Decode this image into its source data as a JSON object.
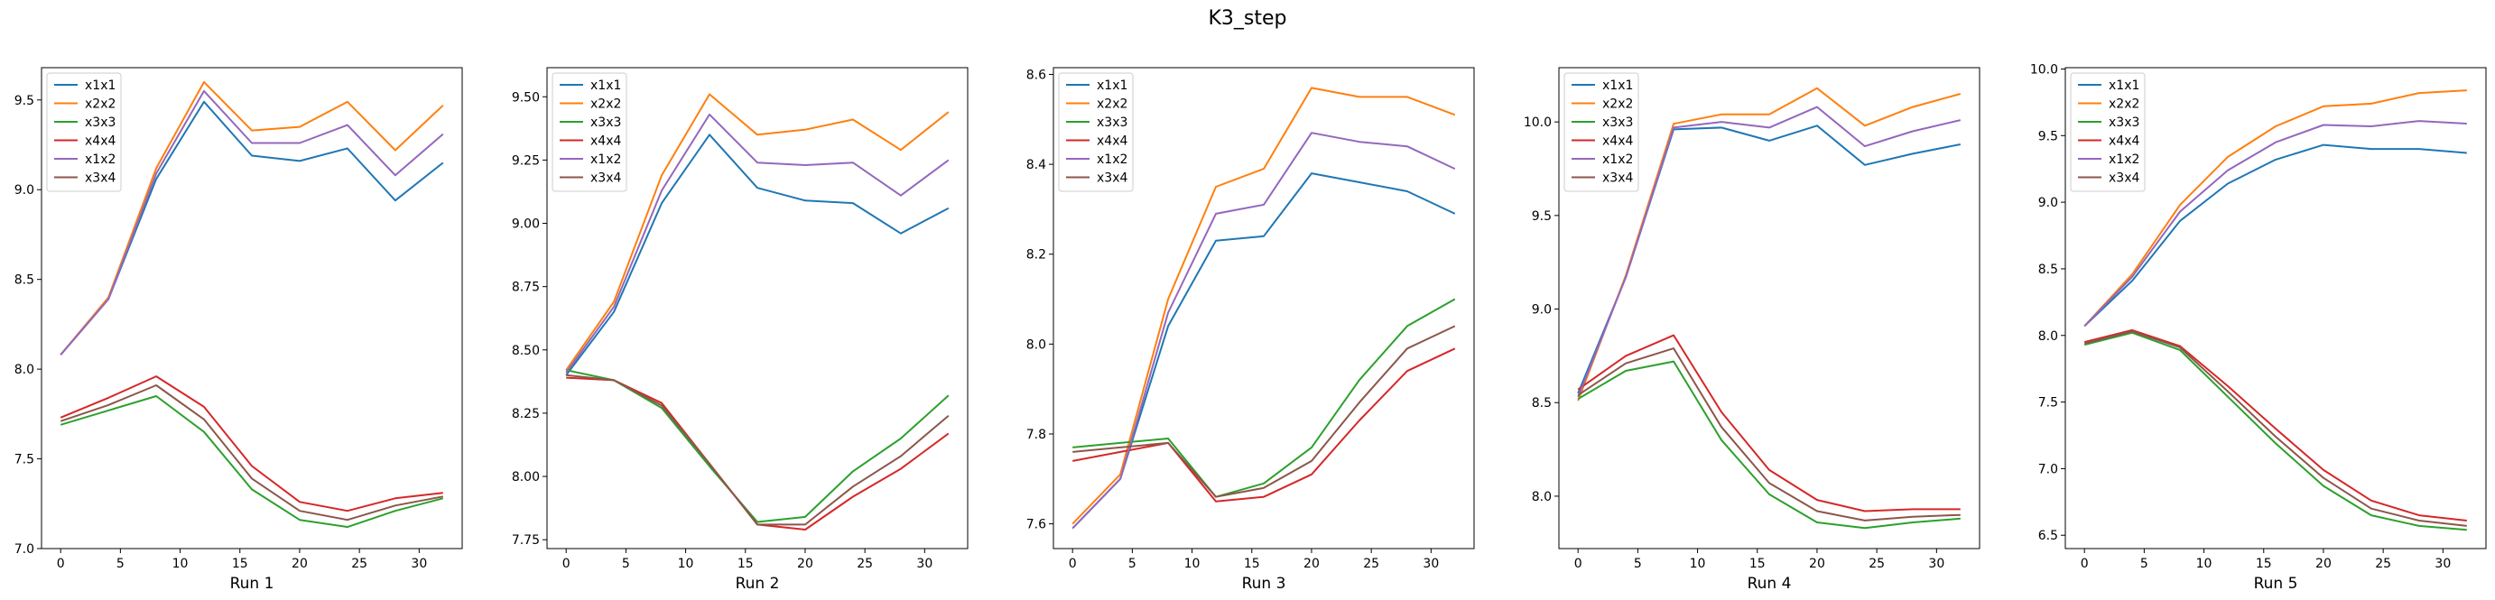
{
  "title": "K3_step",
  "colors": {
    "x1x1": "#1f77b4",
    "x2x2": "#ff7f0e",
    "x3x3": "#2ca02c",
    "x4x4": "#d62728",
    "x1x2": "#9467bd",
    "x3x4": "#8c564b"
  },
  "chart_data": [
    {
      "type": "line",
      "xlabel": "Run 1",
      "ylabel": "",
      "legend": "top-left",
      "grid": false,
      "x": [
        0,
        4,
        8,
        12,
        16,
        20,
        24,
        28,
        32
      ],
      "xlim": [
        -1.6,
        33.6
      ],
      "xticks": [
        0,
        5,
        10,
        15,
        20,
        25,
        30
      ],
      "ylim": [
        7.0,
        9.68
      ],
      "yticks": [
        7.0,
        7.5,
        8.0,
        8.5,
        9.0,
        9.5
      ],
      "ytick_labels": [
        "7.0",
        "7.5",
        "8.0",
        "8.5",
        "9.0",
        "9.5"
      ],
      "series": [
        {
          "name": "x1x1",
          "values": [
            8.08,
            8.39,
            9.06,
            9.49,
            9.19,
            9.16,
            9.23,
            8.94,
            9.15
          ]
        },
        {
          "name": "x2x2",
          "values": [
            8.08,
            8.4,
            9.12,
            9.6,
            9.33,
            9.35,
            9.49,
            9.22,
            9.47
          ]
        },
        {
          "name": "x3x3",
          "values": [
            7.69,
            7.77,
            7.85,
            7.65,
            7.33,
            7.16,
            7.12,
            7.21,
            7.28
          ]
        },
        {
          "name": "x4x4",
          "values": [
            7.73,
            7.84,
            7.96,
            7.79,
            7.46,
            7.26,
            7.21,
            7.28,
            7.31
          ]
        },
        {
          "name": "x1x2",
          "values": [
            8.08,
            8.39,
            9.09,
            9.55,
            9.26,
            9.26,
            9.36,
            9.08,
            9.31
          ]
        },
        {
          "name": "x3x4",
          "values": [
            7.71,
            7.8,
            7.91,
            7.72,
            7.39,
            7.21,
            7.16,
            7.24,
            7.29
          ]
        }
      ]
    },
    {
      "type": "line",
      "xlabel": "Run 2",
      "ylabel": "",
      "legend": "top-left",
      "grid": false,
      "x": [
        0,
        4,
        8,
        12,
        16,
        20,
        24,
        28,
        32
      ],
      "xlim": [
        -1.6,
        33.6
      ],
      "xticks": [
        0,
        5,
        10,
        15,
        20,
        25,
        30
      ],
      "ylim": [
        7.715,
        9.615
      ],
      "yticks": [
        7.75,
        8.0,
        8.25,
        8.5,
        8.75,
        9.0,
        9.25,
        9.5
      ],
      "ytick_labels": [
        "7.75",
        "8.00",
        "8.25",
        "8.50",
        "8.75",
        "9.00",
        "9.25",
        "9.50"
      ],
      "series": [
        {
          "name": "x1x1",
          "values": [
            8.4,
            8.65,
            9.08,
            9.35,
            9.14,
            9.09,
            9.08,
            8.96,
            9.06
          ]
        },
        {
          "name": "x2x2",
          "values": [
            8.42,
            8.69,
            9.19,
            9.51,
            9.35,
            9.37,
            9.41,
            9.29,
            9.44
          ]
        },
        {
          "name": "x3x3",
          "values": [
            8.42,
            8.38,
            8.27,
            8.04,
            7.82,
            7.84,
            8.02,
            8.15,
            8.32
          ]
        },
        {
          "name": "x4x4",
          "values": [
            8.39,
            8.38,
            8.29,
            8.05,
            7.81,
            7.79,
            7.92,
            8.03,
            8.17
          ]
        },
        {
          "name": "x1x2",
          "values": [
            8.41,
            8.67,
            9.13,
            9.43,
            9.24,
            9.23,
            9.24,
            9.11,
            9.25
          ]
        },
        {
          "name": "x3x4",
          "values": [
            8.4,
            8.38,
            8.28,
            8.05,
            7.81,
            7.81,
            7.96,
            8.08,
            8.24
          ]
        }
      ]
    },
    {
      "type": "line",
      "xlabel": "Run 3",
      "ylabel": "",
      "legend": "top-left",
      "grid": false,
      "x": [
        0,
        4,
        8,
        12,
        16,
        20,
        24,
        28,
        32
      ],
      "xlim": [
        -1.6,
        33.6
      ],
      "xticks": [
        0,
        5,
        10,
        15,
        20,
        25,
        30
      ],
      "ylim": [
        7.545,
        8.615
      ],
      "yticks": [
        7.6,
        7.8,
        8.0,
        8.2,
        8.4,
        8.6
      ],
      "ytick_labels": [
        "7.6",
        "7.8",
        "8.0",
        "8.2",
        "8.4",
        "8.6"
      ],
      "series": [
        {
          "name": "x1x1",
          "values": [
            7.59,
            7.7,
            8.04,
            8.23,
            8.24,
            8.38,
            8.36,
            8.34,
            8.29
          ]
        },
        {
          "name": "x2x2",
          "values": [
            7.6,
            7.71,
            8.1,
            8.35,
            8.39,
            8.57,
            8.55,
            8.55,
            8.51
          ]
        },
        {
          "name": "x3x3",
          "values": [
            7.77,
            7.78,
            7.79,
            7.66,
            7.69,
            7.77,
            7.92,
            8.04,
            8.1
          ]
        },
        {
          "name": "x4x4",
          "values": [
            7.74,
            7.76,
            7.78,
            7.65,
            7.66,
            7.71,
            7.83,
            7.94,
            7.99
          ]
        },
        {
          "name": "x1x2",
          "values": [
            7.59,
            7.7,
            8.07,
            8.29,
            8.31,
            8.47,
            8.45,
            8.44,
            8.39
          ]
        },
        {
          "name": "x3x4",
          "values": [
            7.76,
            7.77,
            7.78,
            7.66,
            7.68,
            7.74,
            7.87,
            7.99,
            8.04
          ]
        }
      ]
    },
    {
      "type": "line",
      "xlabel": "Run 4",
      "ylabel": "",
      "legend": "top-left",
      "grid": false,
      "x": [
        0,
        4,
        8,
        12,
        16,
        20,
        24,
        28,
        32
      ],
      "xlim": [
        -1.6,
        33.6
      ],
      "xticks": [
        0,
        5,
        10,
        15,
        20,
        25,
        30
      ],
      "ylim": [
        7.72,
        10.29
      ],
      "yticks": [
        8.0,
        8.5,
        9.0,
        9.5,
        10.0
      ],
      "ytick_labels": [
        "8.0",
        "8.5",
        "9.0",
        "9.5",
        "10.0"
      ],
      "series": [
        {
          "name": "x1x1",
          "values": [
            8.55,
            9.17,
            9.96,
            9.97,
            9.9,
            9.98,
            9.77,
            9.83,
            9.88
          ]
        },
        {
          "name": "x2x2",
          "values": [
            8.51,
            9.18,
            9.99,
            10.04,
            10.04,
            10.18,
            9.98,
            10.08,
            10.15
          ]
        },
        {
          "name": "x3x3",
          "values": [
            8.52,
            8.67,
            8.72,
            8.3,
            8.01,
            7.86,
            7.83,
            7.86,
            7.88
          ]
        },
        {
          "name": "x4x4",
          "values": [
            8.57,
            8.75,
            8.86,
            8.45,
            8.14,
            7.98,
            7.92,
            7.93,
            7.93
          ]
        },
        {
          "name": "x1x2",
          "values": [
            8.53,
            9.17,
            9.97,
            10.0,
            9.97,
            10.08,
            9.87,
            9.95,
            10.01
          ]
        },
        {
          "name": "x3x4",
          "values": [
            8.54,
            8.71,
            8.79,
            8.37,
            8.07,
            7.92,
            7.87,
            7.89,
            7.9
          ]
        }
      ]
    },
    {
      "type": "line",
      "xlabel": "Run 5",
      "ylabel": "",
      "legend": "top-left",
      "grid": false,
      "x": [
        0,
        4,
        8,
        12,
        16,
        20,
        24,
        28,
        32
      ],
      "xlim": [
        -1.6,
        33.6
      ],
      "xticks": [
        0,
        5,
        10,
        15,
        20,
        25,
        30
      ],
      "ylim": [
        6.4,
        10.01
      ],
      "yticks": [
        6.5,
        7.0,
        7.5,
        8.0,
        8.5,
        9.0,
        9.5,
        10.0
      ],
      "ytick_labels": [
        "6.5",
        "7.0",
        "7.5",
        "8.0",
        "8.5",
        "9.0",
        "9.5",
        "10.0"
      ],
      "series": [
        {
          "name": "x1x1",
          "values": [
            8.07,
            8.41,
            8.86,
            9.14,
            9.32,
            9.43,
            9.4,
            9.4,
            9.37
          ]
        },
        {
          "name": "x2x2",
          "values": [
            8.07,
            8.46,
            8.98,
            9.34,
            9.57,
            9.72,
            9.74,
            9.82,
            9.84
          ]
        },
        {
          "name": "x3x3",
          "values": [
            7.93,
            8.02,
            7.89,
            7.54,
            7.19,
            6.87,
            6.65,
            6.57,
            6.54
          ]
        },
        {
          "name": "x4x4",
          "values": [
            7.95,
            8.04,
            7.92,
            7.62,
            7.3,
            6.99,
            6.76,
            6.65,
            6.61
          ]
        },
        {
          "name": "x1x2",
          "values": [
            8.07,
            8.44,
            8.93,
            9.24,
            9.45,
            9.58,
            9.57,
            9.61,
            9.59
          ]
        },
        {
          "name": "x3x4",
          "values": [
            7.94,
            8.03,
            7.91,
            7.58,
            7.24,
            6.93,
            6.7,
            6.61,
            6.57
          ]
        }
      ]
    }
  ]
}
